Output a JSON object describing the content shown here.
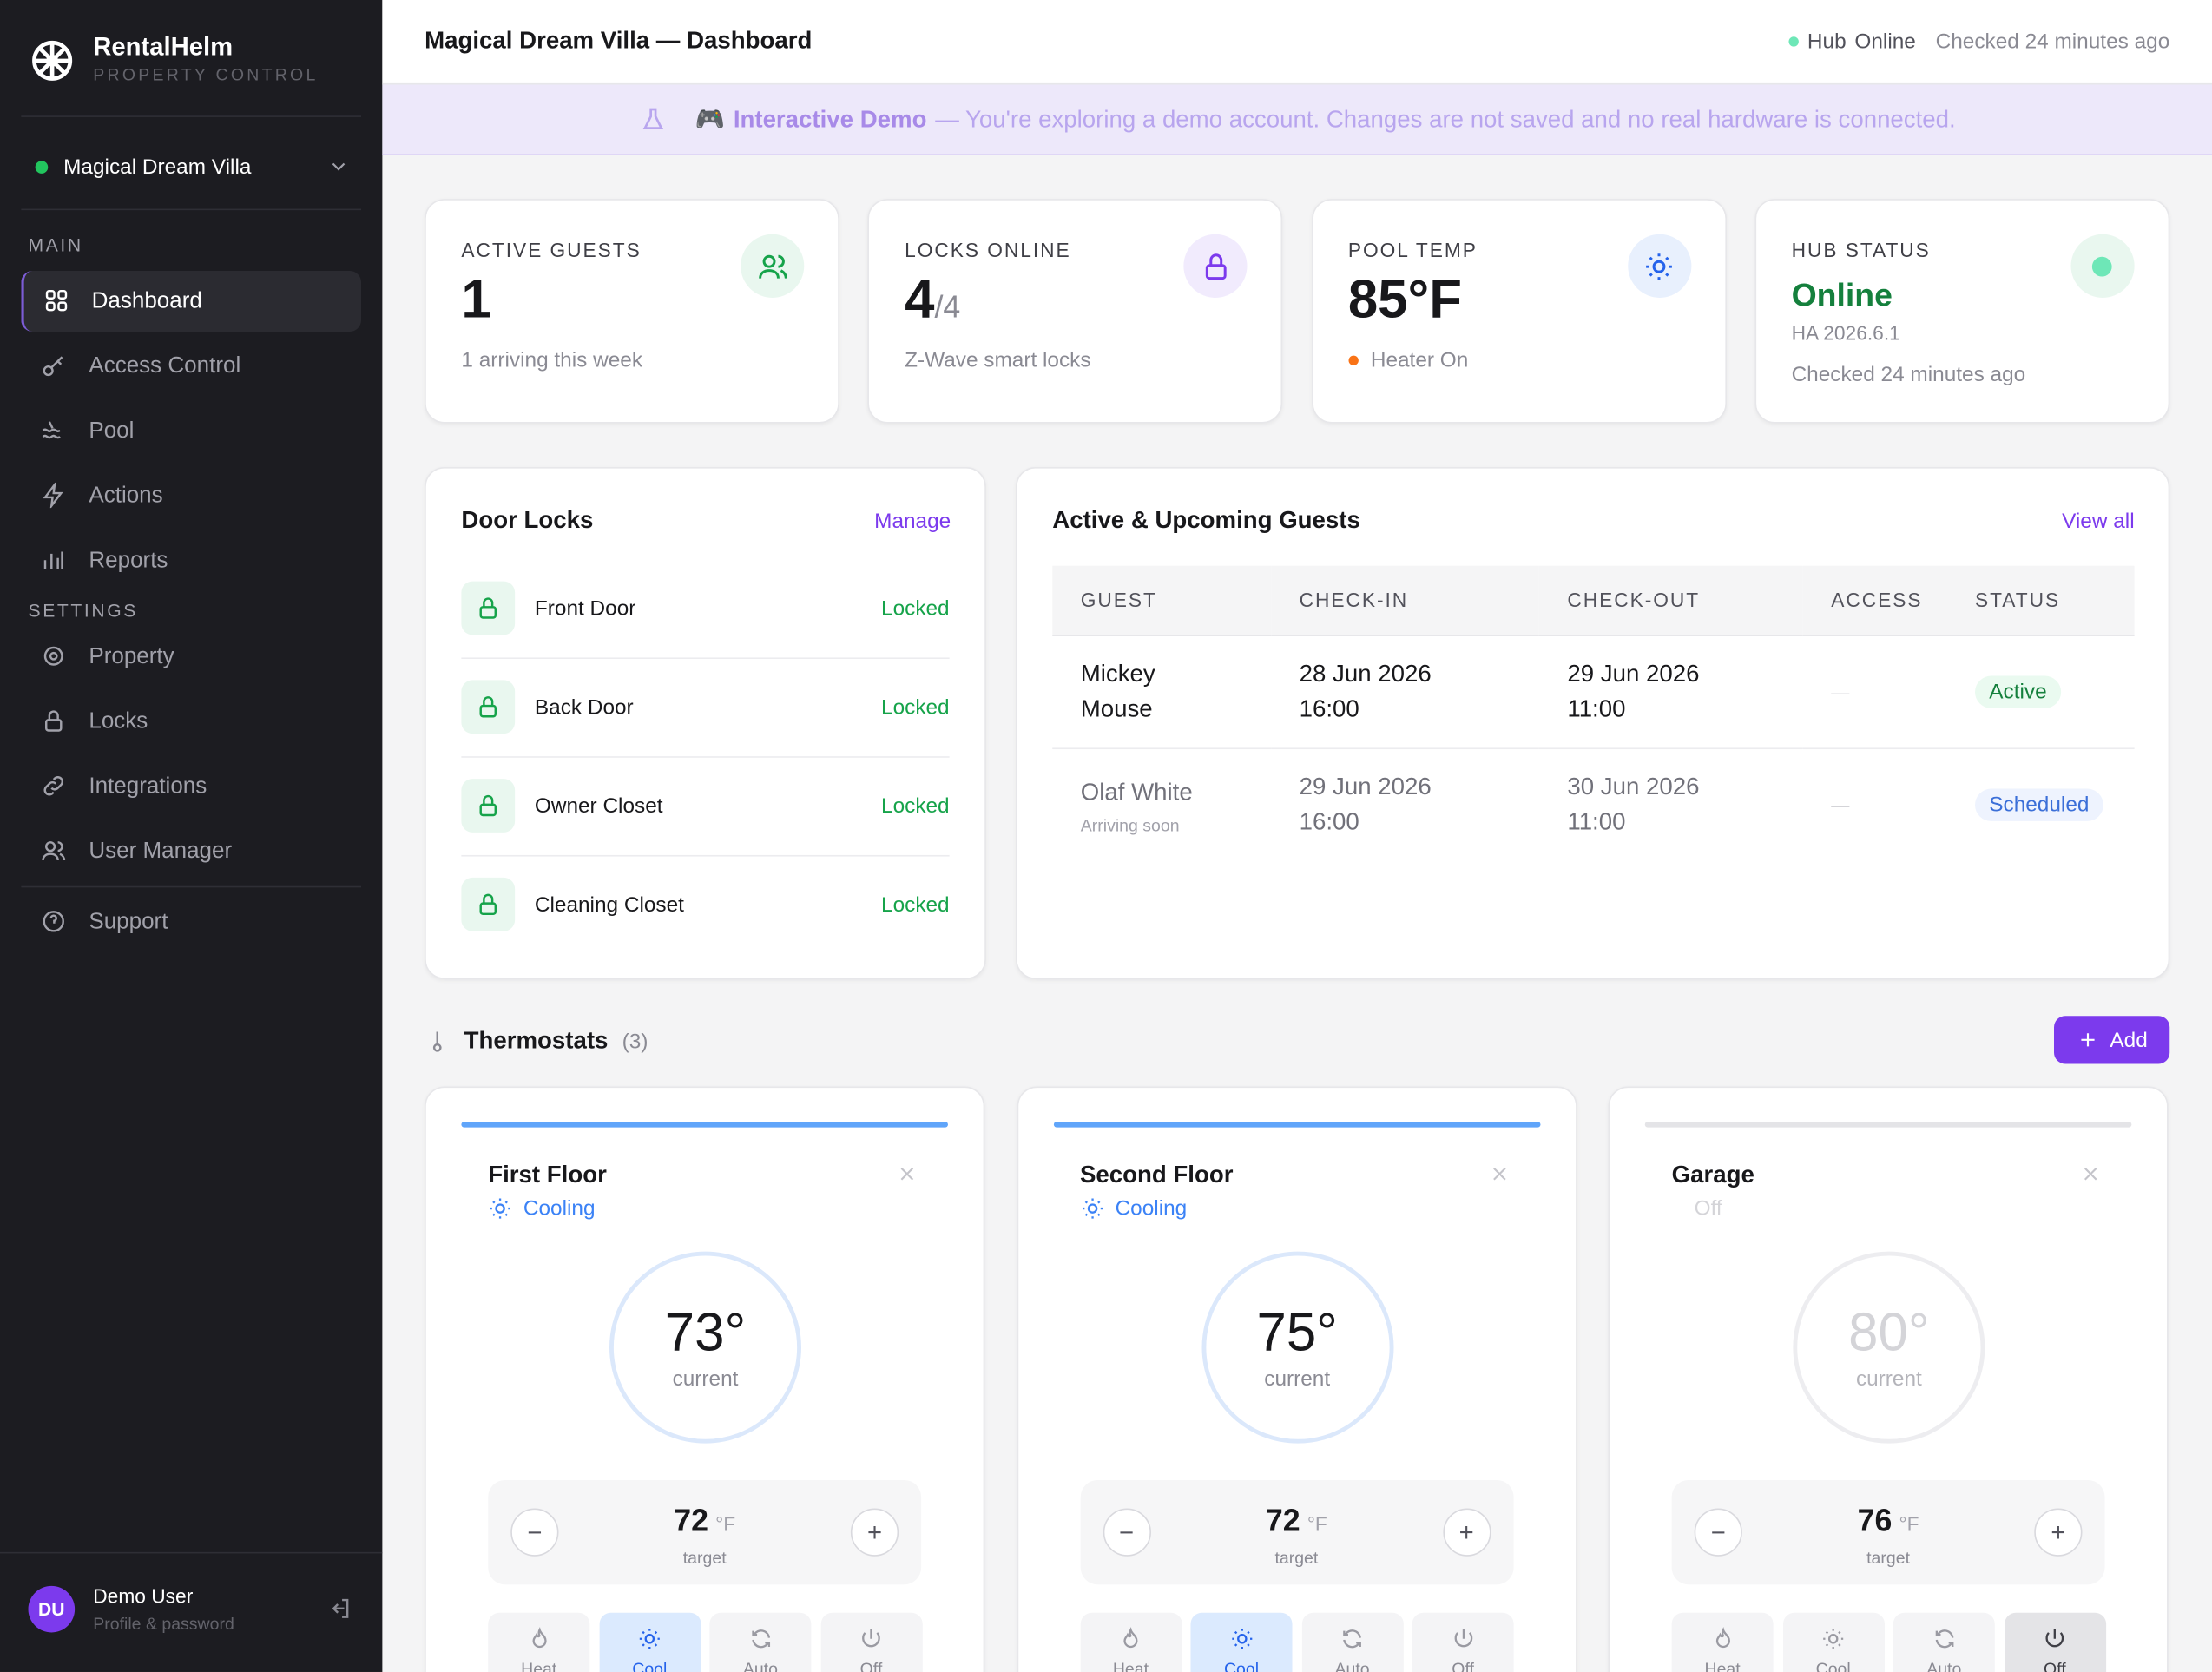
{
  "brand": {
    "name": "RentalHelm",
    "tagline": "PROPERTY CONTROL"
  },
  "property_selector": "Magical Dream Villa",
  "nav": {
    "main_heading": "MAIN",
    "main": [
      "Dashboard",
      "Access Control",
      "Pool",
      "Actions",
      "Reports"
    ],
    "settings_heading": "SETTINGS",
    "settings": [
      "Property",
      "Locks",
      "Integrations",
      "User Manager"
    ],
    "support": "Support"
  },
  "user": {
    "initials": "DU",
    "name": "Demo User",
    "subtitle": "Profile & password"
  },
  "header": {
    "title": "Magical Dream Villa — Dashboard",
    "hub_label": "Hub",
    "hub_status": "Online",
    "checked": "Checked 24 minutes ago"
  },
  "banner": {
    "icon": "🎮",
    "title": "Interactive Demo",
    "text": "— You're exploring a demo account. Changes are not saved and no real hardware is connected."
  },
  "stats": [
    {
      "label": "ACTIVE GUESTS",
      "value": "1",
      "sub": "1 arriving this week"
    },
    {
      "label": "LOCKS ONLINE",
      "value": "4",
      "suffix": "/4",
      "sub": "Z-Wave smart locks"
    },
    {
      "label": "POOL TEMP",
      "value": "85°F",
      "sub": "Heater On"
    },
    {
      "label": "HUB STATUS",
      "value": "Online",
      "detail": "HA 2026.6.1",
      "sub": "Checked 24 minutes ago"
    }
  ],
  "door_locks": {
    "title": "Door Locks",
    "action": "Manage",
    "items": [
      {
        "name": "Front Door",
        "status": "Locked"
      },
      {
        "name": "Back Door",
        "status": "Locked"
      },
      {
        "name": "Owner Closet",
        "status": "Locked"
      },
      {
        "name": "Cleaning Closet",
        "status": "Locked"
      }
    ]
  },
  "guests": {
    "title": "Active & Upcoming Guests",
    "action": "View all",
    "columns": [
      "GUEST",
      "CHECK-IN",
      "CHECK-OUT",
      "ACCESS",
      "STATUS"
    ],
    "rows": [
      {
        "guest": "Mickey Mouse",
        "check_in": [
          "28 Jun 2026",
          "16:00"
        ],
        "check_out": [
          "29 Jun 2026",
          "11:00"
        ],
        "access": "—",
        "status": "Active"
      },
      {
        "guest": "Olaf White",
        "note": "Arriving soon",
        "check_in": [
          "29 Jun 2026",
          "16:00"
        ],
        "check_out": [
          "30 Jun 2026",
          "11:00"
        ],
        "access": "—",
        "status": "Scheduled"
      }
    ]
  },
  "thermostats": {
    "title": "Thermostats",
    "count": "(3)",
    "add": "Add",
    "current_label": "current",
    "target_label": "target",
    "unit": "°F",
    "modes": [
      "Heat",
      "Cool",
      "Auto",
      "Off"
    ],
    "items": [
      {
        "name": "First Floor",
        "state": "Cooling",
        "current": "73°",
        "target": "72",
        "mode": "Cool"
      },
      {
        "name": "Second Floor",
        "state": "Cooling",
        "current": "75°",
        "target": "72",
        "mode": "Cool"
      },
      {
        "name": "Garage",
        "state": "Off",
        "current": "80°",
        "target": "76",
        "mode": "Off"
      }
    ]
  }
}
